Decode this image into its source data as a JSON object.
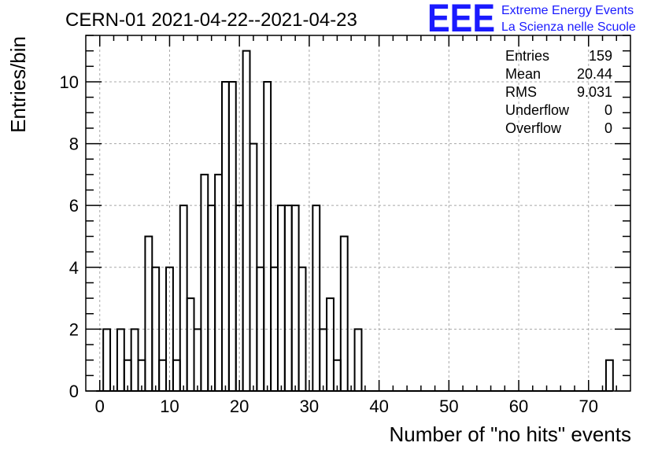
{
  "chart_data": {
    "type": "bar",
    "title": "CERN-01 2021-04-22--2021-04-23",
    "xlabel": "Number of \"no hits\" events",
    "ylabel": "Entries/bin",
    "xlim": [
      -2,
      76
    ],
    "ylim": [
      0,
      11.5
    ],
    "x_ticks": [
      "0",
      "10",
      "20",
      "30",
      "40",
      "50",
      "60",
      "70"
    ],
    "y_ticks": [
      "0",
      "2",
      "4",
      "6",
      "8",
      "10"
    ],
    "grid": true,
    "bin_width": 1,
    "bins": [
      {
        "x": 0,
        "value": 0
      },
      {
        "x": 1,
        "value": 2
      },
      {
        "x": 2,
        "value": 0
      },
      {
        "x": 3,
        "value": 2
      },
      {
        "x": 4,
        "value": 1
      },
      {
        "x": 5,
        "value": 2
      },
      {
        "x": 6,
        "value": 1
      },
      {
        "x": 7,
        "value": 5
      },
      {
        "x": 8,
        "value": 4
      },
      {
        "x": 9,
        "value": 1
      },
      {
        "x": 10,
        "value": 4
      },
      {
        "x": 11,
        "value": 1
      },
      {
        "x": 12,
        "value": 6
      },
      {
        "x": 13,
        "value": 3
      },
      {
        "x": 14,
        "value": 2
      },
      {
        "x": 15,
        "value": 7
      },
      {
        "x": 16,
        "value": 6
      },
      {
        "x": 17,
        "value": 7
      },
      {
        "x": 18,
        "value": 10
      },
      {
        "x": 19,
        "value": 10
      },
      {
        "x": 20,
        "value": 6
      },
      {
        "x": 21,
        "value": 11
      },
      {
        "x": 22,
        "value": 8
      },
      {
        "x": 23,
        "value": 4
      },
      {
        "x": 24,
        "value": 10
      },
      {
        "x": 25,
        "value": 4
      },
      {
        "x": 26,
        "value": 6
      },
      {
        "x": 27,
        "value": 6
      },
      {
        "x": 28,
        "value": 6
      },
      {
        "x": 29,
        "value": 4
      },
      {
        "x": 30,
        "value": 0
      },
      {
        "x": 31,
        "value": 6
      },
      {
        "x": 32,
        "value": 2
      },
      {
        "x": 33,
        "value": 3
      },
      {
        "x": 34,
        "value": 1
      },
      {
        "x": 35,
        "value": 5
      },
      {
        "x": 36,
        "value": 0
      },
      {
        "x": 37,
        "value": 2
      },
      {
        "x": 73,
        "value": 1
      }
    ]
  },
  "stats": [
    {
      "label": "Entries",
      "value": "159"
    },
    {
      "label": "Mean",
      "value": "20.44"
    },
    {
      "label": "RMS",
      "value": "9.031"
    },
    {
      "label": "Underflow",
      "value": "0"
    },
    {
      "label": "Overflow",
      "value": "0"
    }
  ],
  "logo": {
    "mark": "EEE",
    "line1": "Extreme Energy Events",
    "line2": "La Scienza nelle Scuole"
  },
  "colors": {
    "line": "#000000",
    "grid": "#a8a8a8",
    "logo": "#1a1aff"
  }
}
